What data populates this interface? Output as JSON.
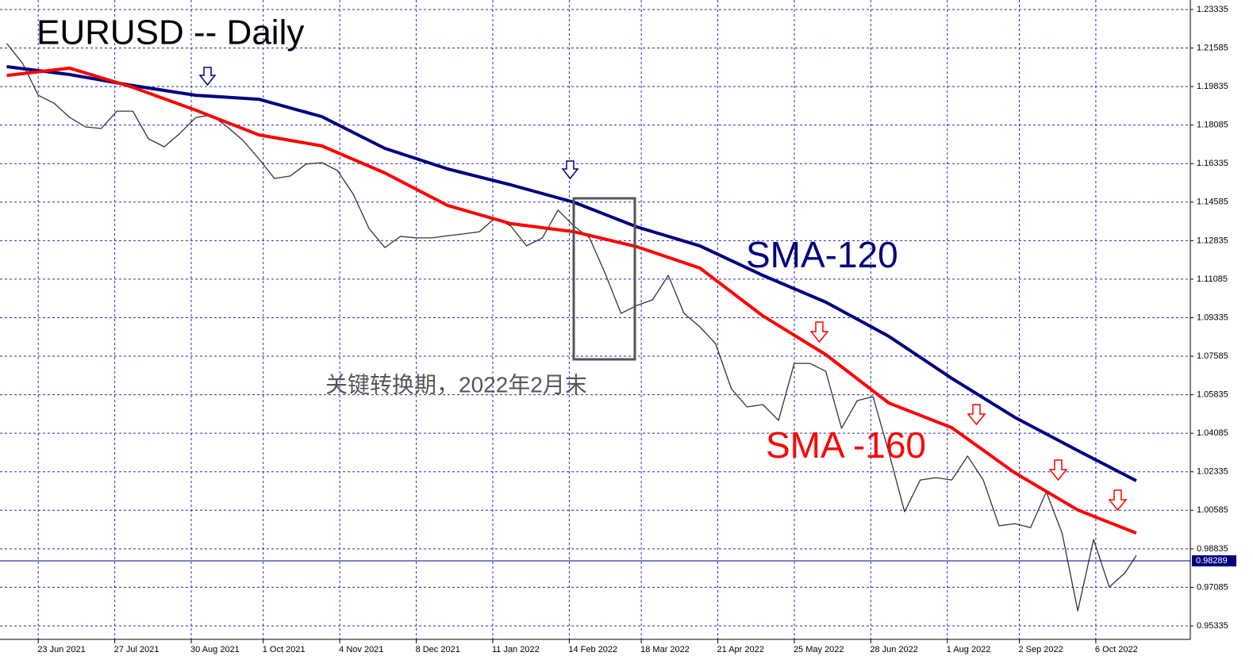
{
  "chart_data": {
    "type": "line",
    "title": "EURUSD -- Daily",
    "annotation": "关键转换期，2022年2月末",
    "current_price": 0.98289,
    "grid": true,
    "xlim": [
      "2021-06-06",
      "2022-11-17"
    ],
    "ylim": [
      0.94722,
      1.23767
    ],
    "yticks": [
      1.23335,
      1.21585,
      1.19835,
      1.18085,
      1.16335,
      1.14585,
      1.12835,
      1.11085,
      1.09335,
      1.07585,
      1.05835,
      1.04085,
      1.02335,
      1.00585,
      0.98835,
      0.97085,
      0.95335
    ],
    "xticks": [
      {
        "value": "2021-06-23",
        "label": "23 Jun 2021"
      },
      {
        "value": "2021-07-27",
        "label": "27 Jul 2021"
      },
      {
        "value": "2021-08-30",
        "label": "30 Aug 2021"
      },
      {
        "value": "2021-10-01",
        "label": "1 Oct 2021"
      },
      {
        "value": "2021-11-04",
        "label": "4 Nov 2021"
      },
      {
        "value": "2021-12-08",
        "label": "8 Dec 2021"
      },
      {
        "value": "2022-01-11",
        "label": "11 Jan 2022"
      },
      {
        "value": "2022-02-14",
        "label": "14 Feb 2022"
      },
      {
        "value": "2022-03-18",
        "label": "18 Mar 2022"
      },
      {
        "value": "2022-04-21",
        "label": "21 Apr 2022"
      },
      {
        "value": "2022-05-25",
        "label": "25 May 2022"
      },
      {
        "value": "2022-06-28",
        "label": "28 Jun 2022"
      },
      {
        "value": "2022-08-01",
        "label": "1 Aug 2022"
      },
      {
        "value": "2022-09-02",
        "label": "2 Sep 2022"
      },
      {
        "value": "2022-10-06",
        "label": "6 Oct 2022"
      }
    ],
    "x": [
      "2021-06-09",
      "2021-06-16",
      "2021-06-23",
      "2021-06-30",
      "2021-07-07",
      "2021-07-14",
      "2021-07-21",
      "2021-07-28",
      "2021-08-04",
      "2021-08-11",
      "2021-08-18",
      "2021-08-25",
      "2021-09-01",
      "2021-09-08",
      "2021-09-15",
      "2021-09-22",
      "2021-09-29",
      "2021-10-06",
      "2021-10-13",
      "2021-10-20",
      "2021-10-27",
      "2021-11-03",
      "2021-11-10",
      "2021-11-17",
      "2021-11-24",
      "2021-12-01",
      "2021-12-08",
      "2021-12-15",
      "2021-12-22",
      "2021-12-29",
      "2022-01-05",
      "2022-01-12",
      "2022-01-19",
      "2022-01-26",
      "2022-02-02",
      "2022-02-09",
      "2022-02-16",
      "2022-02-23",
      "2022-03-02",
      "2022-03-09",
      "2022-03-16",
      "2022-03-23",
      "2022-03-30",
      "2022-04-06",
      "2022-04-13",
      "2022-04-20",
      "2022-04-27",
      "2022-05-04",
      "2022-05-11",
      "2022-05-18",
      "2022-05-25",
      "2022-06-01",
      "2022-06-08",
      "2022-06-15",
      "2022-06-22",
      "2022-06-29",
      "2022-07-06",
      "2022-07-13",
      "2022-07-20",
      "2022-07-27",
      "2022-08-03",
      "2022-08-10",
      "2022-08-17",
      "2022-08-24",
      "2022-08-31",
      "2022-09-07",
      "2022-09-14",
      "2022-09-21",
      "2022-09-28",
      "2022-10-05",
      "2022-10-12",
      "2022-10-19",
      "2022-10-24"
    ],
    "series": [
      {
        "color": "#333333",
        "values": [
          1.2179,
          1.2089,
          1.1944,
          1.1908,
          1.1843,
          1.18,
          1.1793,
          1.1872,
          1.1872,
          1.1746,
          1.171,
          1.1771,
          1.1843,
          1.1854,
          1.18,
          1.1739,
          1.1656,
          1.1566,
          1.1577,
          1.1631,
          1.1638,
          1.1602,
          1.1494,
          1.1339,
          1.1252,
          1.1303,
          1.1296,
          1.1296,
          1.1306,
          1.1314,
          1.1324,
          1.1386,
          1.135,
          1.126,
          1.1296,
          1.1422,
          1.135,
          1.1296,
          1.1133,
          1.0953,
          1.0989,
          1.1015,
          1.1126,
          1.0953,
          1.0892,
          1.0816,
          1.0611,
          1.0528,
          1.0539,
          1.0467,
          1.0726,
          1.0726,
          1.069,
          1.0431,
          1.0557,
          1.0575,
          1.0323,
          1.0052,
          1.0196,
          1.0207,
          1.0196,
          1.0305,
          1.0196,
          0.9988,
          0.9998,
          0.998,
          1.0142,
          0.9955,
          0.9602,
          0.9926,
          0.971,
          0.9775,
          0.9854
        ]
      },
      {
        "name": "SMA-120",
        "color": "#000080",
        "x": [
          "2021-06-09",
          "2021-07-07",
          "2021-08-04",
          "2021-09-01",
          "2021-09-29",
          "2021-10-27",
          "2021-11-24",
          "2021-12-22",
          "2022-01-19",
          "2022-02-16",
          "2022-03-16",
          "2022-04-13",
          "2022-05-11",
          "2022-06-08",
          "2022-07-06",
          "2022-08-03",
          "2022-08-31",
          "2022-09-28",
          "2022-10-24"
        ],
        "values": [
          1.2074,
          1.2038,
          1.1988,
          1.1944,
          1.1926,
          1.1847,
          1.1703,
          1.1609,
          1.1537,
          1.1458,
          1.1346,
          1.126,
          1.1126,
          1.1004,
          1.0849,
          1.0658,
          1.0481,
          1.033,
          1.0193
        ]
      },
      {
        "name": "SMA -160",
        "color": "#ff0000",
        "x": [
          "2021-06-09",
          "2021-07-07",
          "2021-08-04",
          "2021-09-01",
          "2021-09-29",
          "2021-10-27",
          "2021-11-24",
          "2021-12-22",
          "2022-01-19",
          "2022-02-16",
          "2022-03-16",
          "2022-04-13",
          "2022-05-11",
          "2022-06-08",
          "2022-07-06",
          "2022-08-03",
          "2022-08-31",
          "2022-09-28",
          "2022-10-24"
        ],
        "values": [
          1.2034,
          1.2067,
          1.198,
          1.1876,
          1.1764,
          1.1714,
          1.1591,
          1.1443,
          1.1361,
          1.1324,
          1.1256,
          1.1159,
          1.0942,
          1.0766,
          1.0546,
          1.0434,
          1.0229,
          1.006,
          0.9955
        ]
      }
    ]
  }
}
